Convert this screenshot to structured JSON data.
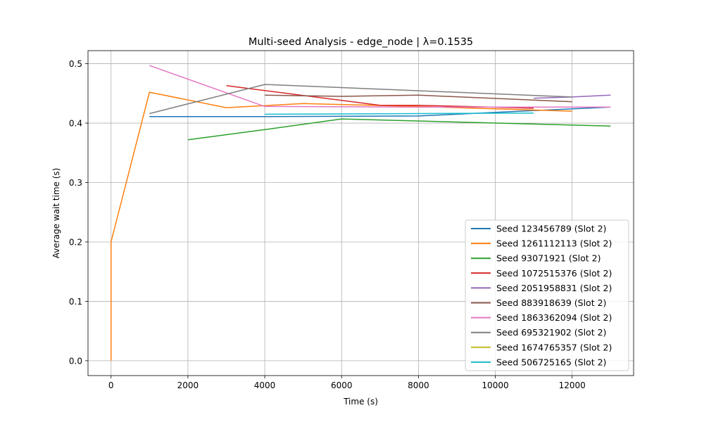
{
  "chart_data": {
    "type": "line",
    "title": "Multi-seed Analysis - edge_node | λ=0.1535",
    "xlabel": "Time (s)",
    "ylabel": "Average wait time (s)",
    "xlim": [
      -600,
      13600
    ],
    "ylim": [
      -0.025,
      0.522
    ],
    "xticks": [
      0,
      2000,
      4000,
      6000,
      8000,
      10000,
      12000
    ],
    "yticks": [
      0.0,
      0.1,
      0.2,
      0.3,
      0.4,
      0.5
    ],
    "xtick_labels": [
      "0",
      "2000",
      "4000",
      "6000",
      "8000",
      "10000",
      "12000"
    ],
    "ytick_labels": [
      "0.0",
      "0.1",
      "0.2",
      "0.3",
      "0.4",
      "0.5"
    ],
    "grid": true,
    "legend_position": "lower-right",
    "series": [
      {
        "name": "Seed 123456789 (Slot 2)",
        "color": "#1f77b4",
        "x": [
          1000,
          4000,
          8000,
          13000
        ],
        "y": [
          0.411,
          0.411,
          0.412,
          0.427
        ]
      },
      {
        "name": "Seed 1261112113 (Slot 2)",
        "color": "#ff7f0e",
        "x": [
          0,
          0,
          1000,
          3000,
          5000,
          8000,
          12000
        ],
        "y": [
          0.0,
          0.2,
          0.452,
          0.426,
          0.433,
          0.428,
          0.42
        ]
      },
      {
        "name": "Seed 93071921 (Slot 2)",
        "color": "#2ca02c",
        "x": [
          2000,
          4000,
          6000,
          13000
        ],
        "y": [
          0.372,
          0.389,
          0.407,
          0.395
        ]
      },
      {
        "name": "Seed 1072515376 (Slot 2)",
        "color": "#d62728",
        "x": [
          3000,
          7000,
          8000,
          11000
        ],
        "y": [
          0.463,
          0.43,
          0.43,
          0.425
        ]
      },
      {
        "name": "Seed 2051958831 (Slot 2)",
        "color": "#9467bd",
        "x": [
          11000,
          12000,
          13000
        ],
        "y": [
          0.442,
          0.444,
          0.447
        ]
      },
      {
        "name": "Seed 883918639 (Slot 2)",
        "color": "#8c564b",
        "x": [
          4000,
          6000,
          8000,
          12000
        ],
        "y": [
          0.447,
          0.445,
          0.447,
          0.436
        ]
      },
      {
        "name": "Seed 1863362094 (Slot 2)",
        "color": "#e377c2",
        "x": [
          1000,
          4000,
          8000,
          13000
        ],
        "y": [
          0.497,
          0.428,
          0.427,
          0.427
        ]
      },
      {
        "name": "Seed 695321902 (Slot 2)",
        "color": "#7f7f7f",
        "x": [
          1000,
          4000,
          12000
        ],
        "y": [
          0.416,
          0.465,
          0.444
        ]
      },
      {
        "name": "Seed 1674765357 (Slot 2)",
        "color": "#bcbd22",
        "x": [],
        "y": []
      },
      {
        "name": "Seed 506725165 (Slot 2)",
        "color": "#17becf",
        "x": [
          4000,
          8000,
          11000
        ],
        "y": [
          0.415,
          0.416,
          0.417
        ]
      }
    ]
  }
}
